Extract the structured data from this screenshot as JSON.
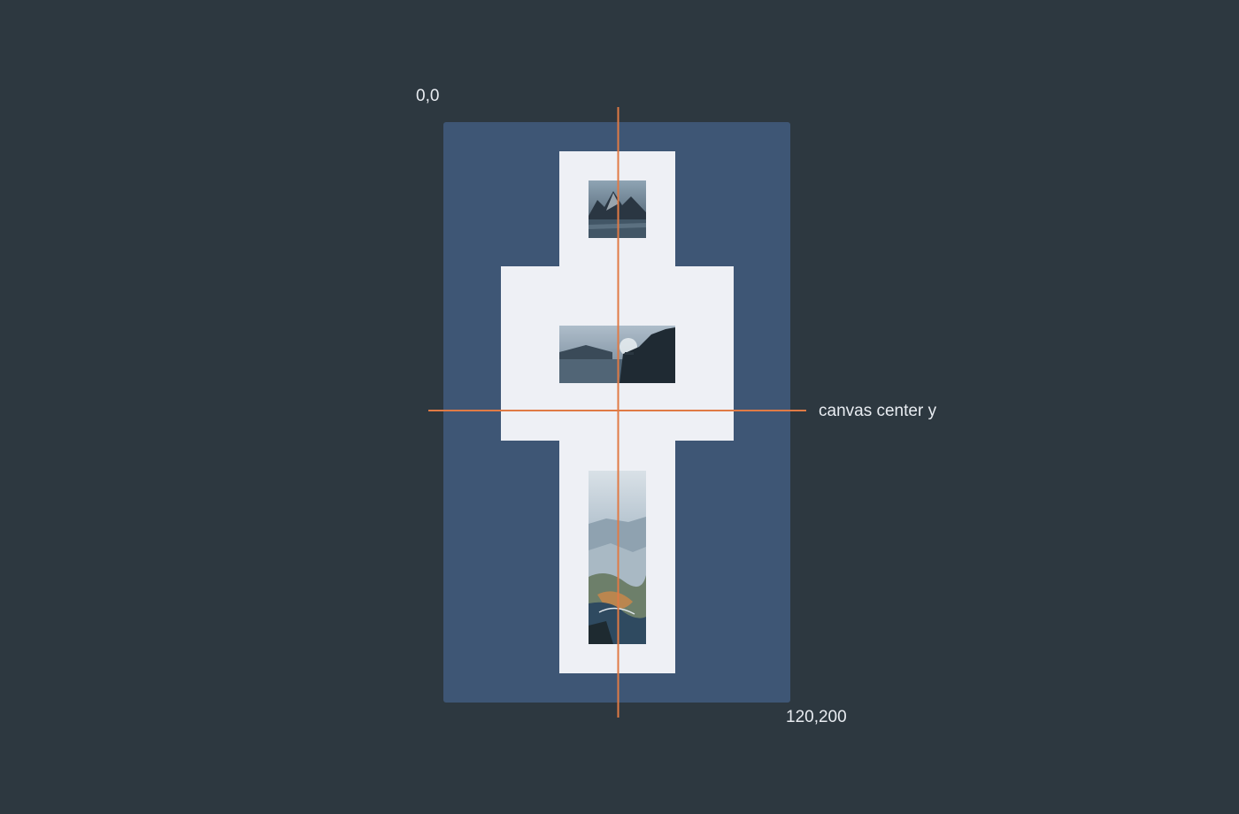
{
  "labels": {
    "origin": "0,0",
    "end": "120,200",
    "center_y": "canvas center y"
  },
  "colors": {
    "background": "#2d3840",
    "canvas": "#3e5675",
    "padding": "#eef0f5",
    "guide": "#e07a45",
    "text": "#e8ecf1"
  },
  "images": [
    {
      "name": "mountain-lake-photo",
      "orientation": "square"
    },
    {
      "name": "cliff-fjord-photo",
      "orientation": "landscape"
    },
    {
      "name": "aerial-coast-photo",
      "orientation": "portrait"
    }
  ]
}
